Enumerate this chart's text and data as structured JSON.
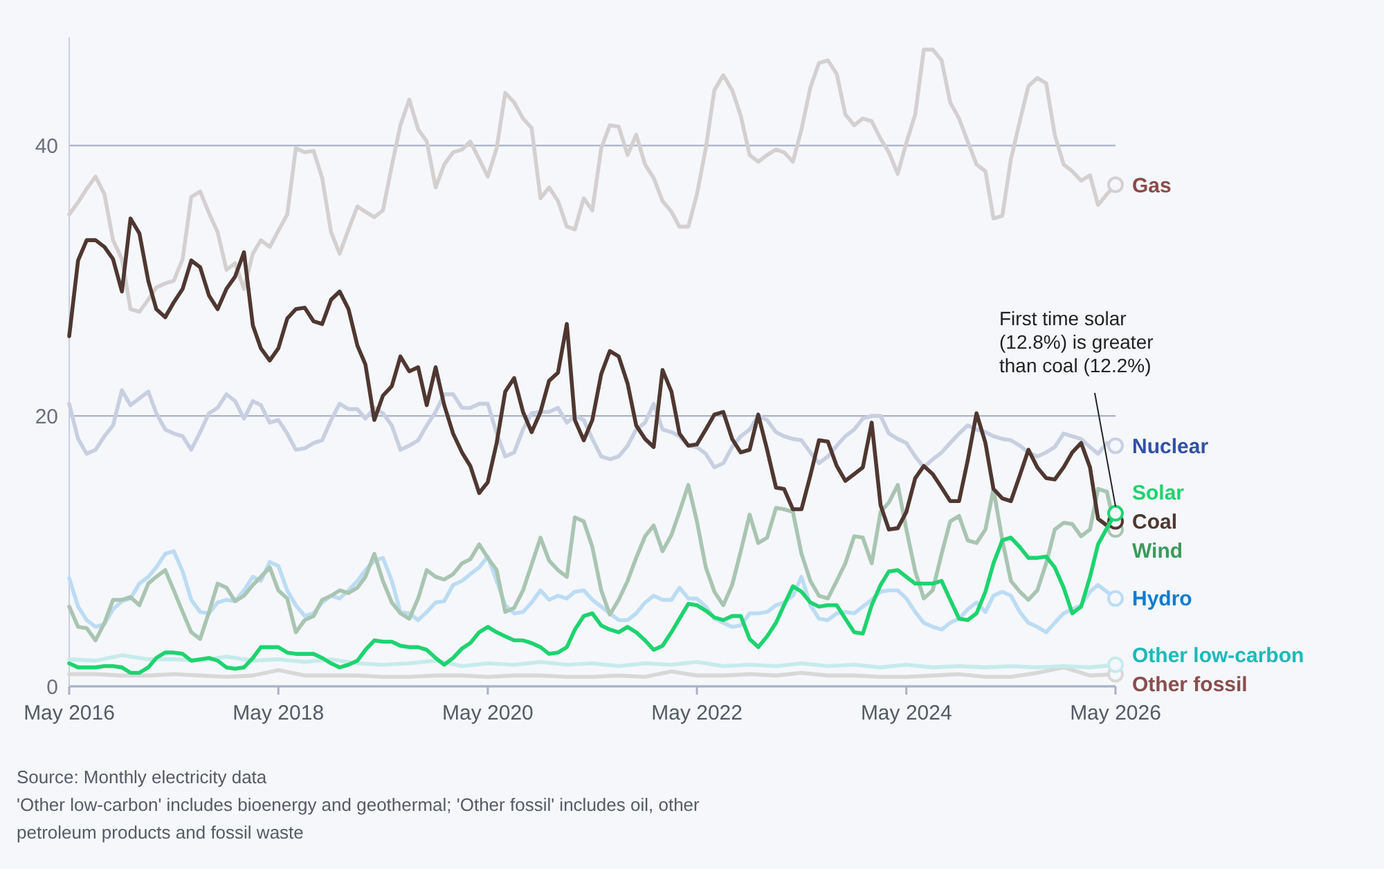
{
  "chart_data": {
    "type": "line",
    "grid": "y",
    "line_style": "solid",
    "xlim": [
      "2016-05",
      "2026-05"
    ],
    "xticks": [
      {
        "value": "2016-05",
        "label": "May 2016"
      },
      {
        "value": "2018-05",
        "label": "May 2018"
      },
      {
        "value": "2020-05",
        "label": "May 2020"
      },
      {
        "value": "2022-05",
        "label": "May 2022"
      },
      {
        "value": "2024-05",
        "label": "May 2024"
      },
      {
        "value": "2026-05",
        "label": "May 2026"
      }
    ],
    "ylim": [
      0,
      48
    ],
    "yticks": [
      0,
      20,
      40
    ],
    "x": [
      "2016-05",
      "2016-06",
      "2016-07",
      "2016-08",
      "2016-09",
      "2016-10",
      "2016-11",
      "2016-12",
      "2017-01",
      "2017-02",
      "2017-03",
      "2017-04",
      "2017-05",
      "2017-06",
      "2017-07",
      "2017-08",
      "2017-09",
      "2017-10",
      "2017-11",
      "2017-12",
      "2018-01",
      "2018-02",
      "2018-03",
      "2018-04",
      "2018-05",
      "2018-06",
      "2018-07",
      "2018-08",
      "2018-09",
      "2018-10",
      "2018-11",
      "2018-12",
      "2019-01",
      "2019-02",
      "2019-03",
      "2019-04",
      "2019-05",
      "2019-06",
      "2019-07",
      "2019-08",
      "2019-09",
      "2019-10",
      "2019-11",
      "2019-12",
      "2020-01",
      "2020-02",
      "2020-03",
      "2020-04",
      "2020-05",
      "2020-06",
      "2020-07",
      "2020-08",
      "2020-09",
      "2020-10",
      "2020-11",
      "2020-12",
      "2021-01",
      "2021-02",
      "2021-03",
      "2021-04",
      "2021-05",
      "2021-06",
      "2021-07",
      "2021-08",
      "2021-09",
      "2021-10",
      "2021-11",
      "2021-12",
      "2022-01",
      "2022-02",
      "2022-03",
      "2022-04",
      "2022-05",
      "2022-06",
      "2022-07",
      "2022-08",
      "2022-09",
      "2022-10",
      "2022-11",
      "2022-12",
      "2023-01",
      "2023-02",
      "2023-03",
      "2023-04",
      "2023-05",
      "2023-06",
      "2023-07",
      "2023-08",
      "2023-09",
      "2023-10",
      "2023-11",
      "2023-12",
      "2024-01",
      "2024-02",
      "2024-03",
      "2024-04",
      "2024-05",
      "2024-06",
      "2024-07",
      "2024-08",
      "2024-09",
      "2024-10",
      "2024-11",
      "2024-12",
      "2025-01",
      "2025-02",
      "2025-03",
      "2025-04",
      "2025-05",
      "2025-06",
      "2025-07",
      "2025-08",
      "2025-09",
      "2025-10",
      "2025-11",
      "2025-12",
      "2026-01",
      "2026-02",
      "2026-03",
      "2026-04",
      "2026-05"
    ],
    "series": [
      {
        "name": "Other fossil",
        "color": "#d9d7d7",
        "x": [
          "2016-05",
          "2016-08",
          "2016-11",
          "2017-02",
          "2017-05",
          "2017-08",
          "2017-11",
          "2018-02",
          "2018-05",
          "2018-08",
          "2018-11",
          "2019-02",
          "2019-05",
          "2019-08",
          "2019-11",
          "2020-02",
          "2020-05",
          "2020-08",
          "2020-11",
          "2021-02",
          "2021-05",
          "2021-08",
          "2021-11",
          "2022-02",
          "2022-05",
          "2022-08",
          "2022-11",
          "2023-02",
          "2023-05",
          "2023-08",
          "2023-11",
          "2024-02",
          "2024-05",
          "2024-08",
          "2024-11",
          "2025-02",
          "2025-05",
          "2025-08",
          "2025-11",
          "2026-02",
          "2026-05"
        ],
        "values": [
          0.9,
          0.9,
          0.8,
          0.8,
          0.9,
          0.8,
          0.7,
          0.8,
          1.2,
          0.8,
          0.8,
          0.8,
          0.7,
          0.7,
          0.8,
          0.8,
          0.7,
          0.8,
          0.8,
          0.7,
          0.7,
          0.8,
          0.7,
          1.1,
          0.8,
          0.8,
          0.9,
          0.8,
          1.0,
          0.8,
          0.8,
          0.7,
          0.7,
          0.8,
          0.9,
          0.7,
          0.7,
          1.0,
          1.4,
          0.8,
          0.9
        ]
      },
      {
        "name": "Other low-carbon",
        "color": "#c6ebeb",
        "x": [
          "2016-05",
          "2016-08",
          "2016-11",
          "2017-02",
          "2017-05",
          "2017-08",
          "2017-11",
          "2018-02",
          "2018-05",
          "2018-08",
          "2018-11",
          "2019-02",
          "2019-05",
          "2019-08",
          "2019-11",
          "2020-02",
          "2020-05",
          "2020-08",
          "2020-11",
          "2021-02",
          "2021-05",
          "2021-08",
          "2021-11",
          "2022-02",
          "2022-05",
          "2022-08",
          "2022-11",
          "2023-02",
          "2023-05",
          "2023-08",
          "2023-11",
          "2024-02",
          "2024-05",
          "2024-08",
          "2024-11",
          "2025-02",
          "2025-05",
          "2025-08",
          "2025-11",
          "2026-02",
          "2026-05"
        ],
        "values": [
          2.0,
          1.9,
          2.3,
          2.0,
          2.0,
          1.9,
          2.2,
          1.9,
          2.0,
          1.8,
          2.0,
          1.7,
          1.6,
          1.7,
          1.9,
          1.5,
          1.7,
          1.6,
          1.8,
          1.6,
          1.7,
          1.5,
          1.7,
          1.6,
          1.8,
          1.5,
          1.6,
          1.5,
          1.7,
          1.5,
          1.6,
          1.4,
          1.6,
          1.4,
          1.5,
          1.4,
          1.5,
          1.4,
          1.5,
          1.4,
          1.6
        ]
      },
      {
        "name": "Hydro",
        "color": "#bcdcf3",
        "values": [
          8,
          5.9,
          4.9,
          4.4,
          4.6,
          5.7,
          6.3,
          6.5,
          7.6,
          8.1,
          8.8,
          9.8,
          10,
          8.5,
          6.4,
          5.5,
          5.4,
          6.2,
          6.4,
          6.3,
          7.1,
          8.1,
          7.8,
          9.2,
          8.9,
          7.1,
          6,
          5.2,
          5.4,
          6.2,
          6.7,
          6.5,
          7.1,
          7.8,
          8.6,
          9.3,
          9.5,
          7.8,
          5.5,
          5.4,
          4.9,
          5.5,
          6.2,
          6.3,
          7.5,
          7.8,
          8.3,
          8.8,
          9.6,
          7.8,
          6,
          5.4,
          5.5,
          6.2,
          7.1,
          6.4,
          6.7,
          6.5,
          7,
          7.1,
          6.4,
          5.9,
          5.4,
          4.9,
          4.9,
          5.4,
          6.2,
          6.7,
          6.4,
          6.4,
          7.3,
          6.5,
          6.5,
          5.9,
          5,
          4.7,
          4.4,
          4.5,
          5.4,
          5.4,
          5.5,
          6,
          6.2,
          6.7,
          8.1,
          6,
          5,
          4.9,
          5.4,
          5.5,
          5.4,
          5.9,
          6.4,
          7,
          7.1,
          7.1,
          6.5,
          5.5,
          4.7,
          4.4,
          4.2,
          4.7,
          5,
          5.7,
          6.2,
          5.5,
          6.7,
          7,
          6.7,
          5.5,
          4.7,
          4.4,
          4,
          4.7,
          5.4,
          5.7,
          6,
          7,
          7.5,
          7,
          6.5
        ]
      },
      {
        "name": "Wind",
        "color": "#a9c5b2",
        "values": [
          5.9,
          4.4,
          4.3,
          3.4,
          4.7,
          6.4,
          6.4,
          6.6,
          6,
          7.6,
          8.1,
          8.6,
          7.1,
          5.5,
          4,
          3.5,
          5.5,
          7.6,
          7.3,
          6.3,
          6.7,
          7.5,
          8.1,
          8.8,
          7.1,
          6.5,
          4,
          4.9,
          5.2,
          6.4,
          6.7,
          7.1,
          6.9,
          7.3,
          8.1,
          9.8,
          7.8,
          6.2,
          5.4,
          5,
          6.5,
          8.6,
          8.1,
          7.9,
          8.3,
          9.1,
          9.4,
          10.5,
          9.5,
          8.6,
          5.5,
          5.8,
          7.1,
          9,
          11,
          9.3,
          8.6,
          8.1,
          12.5,
          12.2,
          10.3,
          7.1,
          5.3,
          6.4,
          7.8,
          9.5,
          11.1,
          11.9,
          10,
          11.2,
          12.9,
          14.9,
          12.2,
          8.8,
          7,
          6,
          7.5,
          10,
          12.7,
          10.6,
          11,
          13.2,
          13.1,
          12.9,
          9.8,
          7.8,
          6.7,
          6.5,
          7.8,
          9.1,
          11.1,
          11,
          9.1,
          12.9,
          13.6,
          14.9,
          11.6,
          8.5,
          6.5,
          7.1,
          9.8,
          12.2,
          12.6,
          10.8,
          10.6,
          11.6,
          14.6,
          10.8,
          7.8,
          7,
          6.4,
          7.1,
          9.1,
          11.6,
          12.1,
          12,
          11.1,
          11.6,
          14.6,
          14.4,
          11.6
        ]
      },
      {
        "name": "Nuclear",
        "color": "#c8cfe1",
        "values": [
          20.9,
          18.3,
          17.2,
          17.5,
          18.5,
          19.3,
          21.9,
          20.8,
          21.3,
          21.8,
          20.2,
          19,
          18.7,
          18.5,
          17.5,
          18.8,
          20.2,
          20.6,
          21.6,
          21.1,
          19.8,
          21.1,
          20.8,
          19.5,
          19.7,
          18.7,
          17.5,
          17.6,
          18,
          18.2,
          19.7,
          20.9,
          20.5,
          20.5,
          19.8,
          20.6,
          20.2,
          19.3,
          17.5,
          17.8,
          18.2,
          19.3,
          20.3,
          21.6,
          21.6,
          20.6,
          20.6,
          20.9,
          20.9,
          18.7,
          17,
          17.3,
          19,
          20.2,
          20.3,
          20.3,
          20.6,
          19.5,
          20,
          19.7,
          18.3,
          17,
          16.8,
          17,
          17.8,
          19,
          19.5,
          20.9,
          19,
          18.8,
          18.5,
          17.8,
          17.7,
          17.2,
          16.2,
          16.5,
          17.7,
          18.5,
          19,
          20,
          19.7,
          18.8,
          18.5,
          18.3,
          18.2,
          17.3,
          16.5,
          17,
          17.8,
          18.5,
          19,
          19.8,
          20,
          20,
          18.7,
          18.3,
          18,
          17,
          16.2,
          16.8,
          17.3,
          18,
          18.7,
          19.3,
          19,
          18.8,
          18.5,
          18.3,
          18.2,
          17.8,
          17.3,
          17,
          17.3,
          17.7,
          18.7,
          18.5,
          18.3,
          17.7,
          17.2,
          18,
          17.8
        ]
      },
      {
        "name": "Gas",
        "color": "#d5d0d0",
        "values": [
          34.9,
          35.8,
          36.8,
          37.7,
          36.4,
          33,
          31.6,
          27.9,
          27.7,
          28.6,
          29.5,
          29.8,
          30,
          31.6,
          36.2,
          36.6,
          35,
          33.6,
          30.8,
          31.3,
          29.4,
          32,
          33,
          32.5,
          33.7,
          34.9,
          39.8,
          39.5,
          39.6,
          37.6,
          33.6,
          32,
          33.8,
          35.5,
          35.1,
          34.7,
          35.2,
          38.5,
          41.5,
          43.4,
          41.2,
          40.3,
          36.9,
          38.6,
          39.5,
          39.7,
          40.3,
          39,
          37.7,
          39.8,
          43.9,
          43.2,
          42,
          41.3,
          36.1,
          36.9,
          35.9,
          34,
          33.8,
          36.1,
          35.2,
          39.8,
          41.5,
          41.4,
          39.3,
          40.8,
          38.6,
          37.6,
          35.9,
          35.1,
          34,
          34,
          36.4,
          39.8,
          44.1,
          45.2,
          44.1,
          42.2,
          39.3,
          38.8,
          39.3,
          39.7,
          39.5,
          38.8,
          41.2,
          44.3,
          46.1,
          46.3,
          45.3,
          42.3,
          41.5,
          42,
          41.8,
          40.5,
          39.5,
          37.9,
          40.2,
          42.3,
          47.1,
          47.1,
          46.3,
          43.2,
          42,
          40.3,
          38.6,
          38.1,
          34.6,
          34.8,
          39,
          41.8,
          44.4,
          45,
          44.6,
          40.8,
          38.6,
          38.1,
          37.4,
          37.8,
          35.6,
          36.4,
          37.1
        ]
      },
      {
        "name": "Coal",
        "color": "#4f3731",
        "values": [
          25.9,
          31.5,
          33,
          33,
          32.5,
          31.6,
          29.2,
          34.6,
          33.5,
          30,
          27.9,
          27.3,
          28.4,
          29.4,
          31.5,
          31,
          28.9,
          27.9,
          29.4,
          30.3,
          32.1,
          26.7,
          25,
          24.1,
          25,
          27.2,
          27.9,
          28,
          27,
          26.8,
          28.6,
          29.2,
          27.9,
          25.2,
          23.8,
          19.7,
          21.5,
          22.2,
          24.4,
          23.3,
          23.6,
          20.8,
          23.6,
          20.8,
          18.7,
          17.3,
          16.3,
          14.3,
          15.1,
          18,
          21.8,
          22.8,
          20.3,
          18.8,
          20.3,
          22.6,
          23.2,
          26.8,
          19.7,
          18.2,
          19.7,
          23.1,
          24.8,
          24.4,
          22.4,
          19.3,
          18.3,
          17.7,
          23.4,
          21.8,
          18.7,
          17.8,
          17.9,
          19,
          20.1,
          20.3,
          18.3,
          17.3,
          17.5,
          20.1,
          17.5,
          14.7,
          14.6,
          13.1,
          13.1,
          15.6,
          18.2,
          18.1,
          16.3,
          15.2,
          15.7,
          16.2,
          19.5,
          13.4,
          11.6,
          11.7,
          12.9,
          15.4,
          16.3,
          15.7,
          14.7,
          13.7,
          13.7,
          16.7,
          20.2,
          18,
          14.6,
          13.9,
          13.7,
          15.6,
          17.5,
          16.2,
          15.4,
          15.3,
          16.2,
          17.3,
          18,
          16.2,
          12.4,
          11.9,
          12.2
        ]
      },
      {
        "name": "Solar",
        "color": "#1ed36f",
        "values": [
          1.7,
          1.4,
          1.4,
          1.4,
          1.5,
          1.5,
          1.4,
          1,
          1,
          1.4,
          2.1,
          2.5,
          2.5,
          2.4,
          1.9,
          2,
          2.1,
          1.9,
          1.4,
          1.3,
          1.4,
          2.1,
          2.9,
          2.9,
          2.9,
          2.5,
          2.4,
          2.4,
          2.4,
          2.1,
          1.7,
          1.4,
          1.6,
          1.9,
          2.7,
          3.4,
          3.3,
          3.3,
          3,
          2.9,
          2.9,
          2.7,
          2.1,
          1.6,
          2.1,
          2.8,
          3.2,
          4,
          4.4,
          4,
          3.7,
          3.4,
          3.4,
          3.2,
          2.9,
          2.4,
          2.5,
          2.9,
          4.2,
          5.2,
          5.4,
          4.5,
          4.2,
          4,
          4.4,
          4,
          3.4,
          2.7,
          3,
          4,
          5,
          6.1,
          6,
          5.6,
          5.1,
          4.9,
          5.2,
          5.2,
          3.5,
          2.9,
          3.7,
          4.7,
          6,
          7.4,
          7,
          6.2,
          5.9,
          6,
          6,
          5,
          4,
          3.9,
          6,
          7.5,
          8.5,
          8.6,
          8.1,
          7.6,
          7.6,
          7.6,
          7.8,
          6.4,
          5,
          4.9,
          5.4,
          7,
          9.1,
          10.8,
          11,
          10.3,
          9.5,
          9.5,
          9.6,
          8.8,
          7.3,
          5.4,
          5.9,
          8.1,
          10.5,
          11.7,
          12.8
        ]
      }
    ],
    "annotations": [
      {
        "text": "First time solar (12.8%) is greater than coal (12.2%)",
        "x": "2026-05",
        "y": 12.8
      },
      "Source: Monthly electricity data",
      "'Other low-carbon' includes bioenergy and geothermal; 'Other fossil' includes oil, other petroleum products and fossil waste"
    ]
  }
}
